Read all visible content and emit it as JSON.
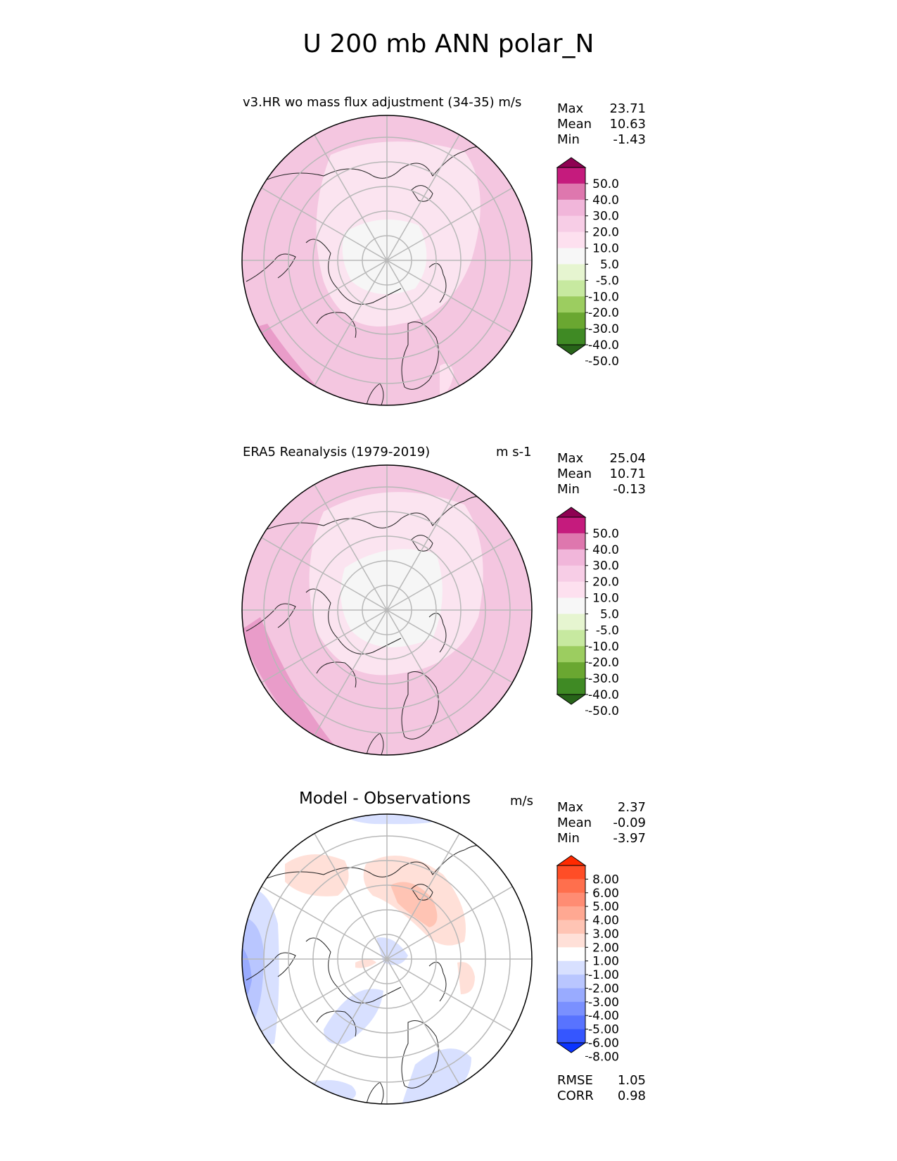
{
  "figure": {
    "title": "U 200 mb ANN polar_N"
  },
  "panels": [
    {
      "id": "model",
      "title_left": "v3.HR wo mass flux adjustment (34-35) m/s",
      "title_right": "",
      "stats": [
        {
          "label": "Max",
          "value": "23.71"
        },
        {
          "label": "Mean",
          "value": "10.63"
        },
        {
          "label": "Min",
          "value": "-1.43"
        }
      ],
      "colorbar": {
        "labels": [
          "50.0",
          "40.0",
          "30.0",
          "20.0",
          "10.0",
          "5.0",
          "-5.0",
          "-10.0",
          "-20.0",
          "-30.0",
          "-40.0",
          "-50.0"
        ],
        "colors": [
          "#8e0152",
          "#c51b7d",
          "#de77ae",
          "#f1b6da",
          "#f7cde6",
          "#fde0ef",
          "#f7f7f7",
          "#e6f5d0",
          "#c7e9a0",
          "#9ccd60",
          "#6aa731",
          "#3f8a24",
          "#276419"
        ]
      }
    },
    {
      "id": "obs",
      "title_left": "ERA5 Reanalysis (1979-2019)",
      "title_right": "m s-1",
      "stats": [
        {
          "label": "Max",
          "value": "25.04"
        },
        {
          "label": "Mean",
          "value": "10.71"
        },
        {
          "label": "Min",
          "value": "-0.13"
        }
      ],
      "colorbar": {
        "labels": [
          "50.0",
          "40.0",
          "30.0",
          "20.0",
          "10.0",
          "5.0",
          "-5.0",
          "-10.0",
          "-20.0",
          "-30.0",
          "-40.0",
          "-50.0"
        ],
        "colors": [
          "#8e0152",
          "#c51b7d",
          "#de77ae",
          "#f1b6da",
          "#f7cde6",
          "#fde0ef",
          "#f7f7f7",
          "#e6f5d0",
          "#c7e9a0",
          "#9ccd60",
          "#6aa731",
          "#3f8a24",
          "#276419"
        ]
      }
    },
    {
      "id": "diff",
      "title_left": "Model - Observations",
      "title_right": "m/s",
      "stats": [
        {
          "label": "Max",
          "value": "2.37"
        },
        {
          "label": "Mean",
          "value": "-0.09"
        },
        {
          "label": "Min",
          "value": "-3.97"
        }
      ],
      "colorbar": {
        "labels": [
          "8.00",
          "6.00",
          "5.00",
          "4.00",
          "3.00",
          "2.00",
          "1.00",
          "-1.00",
          "-2.00",
          "-3.00",
          "-4.00",
          "-5.00",
          "-6.00",
          "-8.00"
        ],
        "colors": [
          "#ff2a00",
          "#ff4d26",
          "#ff6f4d",
          "#ff8c73",
          "#ffa892",
          "#ffc4b4",
          "#ffe0d8",
          "#ffffff",
          "#d8e0ff",
          "#b9c6ff",
          "#99abff",
          "#7a90ff",
          "#5873ff",
          "#3556ff",
          "#0a33ff"
        ]
      },
      "metrics": [
        {
          "label": "RMSE",
          "value": "1.05"
        },
        {
          "label": "CORR",
          "value": "0.98"
        }
      ]
    }
  ]
}
